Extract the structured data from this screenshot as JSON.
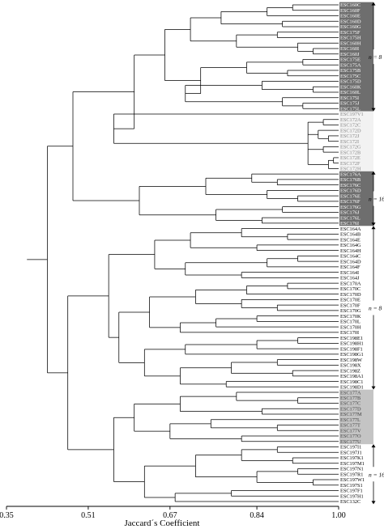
{
  "chart_data": {
    "type": "dendrogram",
    "xlabel": "Jaccard´s Coefficient",
    "xlim": [
      0.35,
      1.0
    ],
    "xticks": [
      "0.35",
      "0.51",
      "0.67",
      "0.84",
      "1.00"
    ],
    "leaves": [
      "ESC160C",
      "ESC160F",
      "ESC160E",
      "ESC160D",
      "ESC160G",
      "ESC175F",
      "ESC175H",
      "ESC160H",
      "ESC160I",
      "ESC160J",
      "ESC175E",
      "ESC175A",
      "ESC175B",
      "ESC175C",
      "ESC175D",
      "ESC160K",
      "ESC160L",
      "ESC175I",
      "ESC175J",
      "ESC175L",
      "ESC197V1",
      "ESC172A",
      "ESC172C",
      "ESC172D",
      "ESC172J",
      "ESC172I",
      "ESC172G",
      "ESC172B",
      "ESC172E",
      "ESC172F",
      "ESC172H",
      "ESC176A",
      "ESC176B",
      "ESC176C",
      "ESC176D",
      "ESC176E",
      "ESC176F",
      "ESC176G",
      "ESC176J",
      "ESC176L",
      "ESC176I",
      "ESC164A",
      "ESC164B",
      "ESC164E",
      "ESC164G",
      "ESC164H",
      "ESC164C",
      "ESC164D",
      "ESC164F",
      "ESC164I",
      "ESC164J",
      "ESC170A",
      "ESC170C",
      "ESC170D",
      "ESC170E",
      "ESC170F",
      "ESC170G",
      "ESC170K",
      "ESC170L",
      "ESC170H",
      "ESC170I",
      "ESC198E1",
      "ESC198H1",
      "ESC198F1",
      "ESC198G1",
      "ESC198W",
      "ESC198X",
      "ESC198Z",
      "ESC198A1",
      "ESC198C1",
      "ESC198D1",
      "ESC177A",
      "ESC177B",
      "ESC177C",
      "ESC177D",
      "ESC177M",
      "ESC177L",
      "ESC177T",
      "ESC177V",
      "ESC177O",
      "ESC177U",
      "ESC197I1",
      "ESC197J1",
      "ESC197K1",
      "ESC197M1",
      "ESC197N1",
      "ESC197R1",
      "ESC197W1",
      "ESC197S1",
      "ESC197F1",
      "ESC197H1",
      "ESC132C"
    ],
    "groups": [
      {
        "label": "n = 8",
        "first": 0,
        "last": 19,
        "shade": "#6e6e6e",
        "text_color": "#ffffff"
      },
      {
        "label": "",
        "first": 20,
        "last": 30,
        "shade": "#f2f2f2",
        "text_color": "#888888"
      },
      {
        "label": "n = 16",
        "first": 31,
        "last": 40,
        "shade": "#6e6e6e",
        "text_color": "#ffffff"
      },
      {
        "label": "n = 8",
        "first": 41,
        "last": 70,
        "shade": "#ffffff",
        "text_color": "#000000"
      },
      {
        "label": "",
        "first": 71,
        "last": 80,
        "shade": "#c4c4c4",
        "text_color": "#444444"
      },
      {
        "label": "n = 16",
        "first": 81,
        "last": 91,
        "shade": "#ffffff",
        "text_color": "#000000"
      }
    ],
    "tree": [
      0.39,
      [
        0.43,
        [
          0.48,
          [
            0.6,
            [
              0.66,
              [
                0.71,
                [
                  0.77,
                  [
                    0.86,
                    [
                      0.91,
                      0,
                      1
                    ],
                    2
                  ],
                  [
                    0.89,
                    3,
                    4
                  ]
                ],
                [
                  0.8,
                  [
                    0.88,
                    5,
                    6
                  ],
                  [
                    0.92,
                    7,
                    [
                      0.95,
                      8,
                      9
                    ]
                  ]
                ]
              ],
              [
                0.73,
                [
                  0.82,
                  [
                    0.93,
                    10,
                    11
                  ],
                  [
                    0.9,
                    12,
                    13
                  ]
                ],
                [
                  0.7,
                  [
                    0.85,
                    14,
                    [
                      0.95,
                      15,
                      16
                    ]
                  ],
                  [
                    0.89,
                    17,
                    [
                      0.93,
                      18,
                      19
                    ]
                  ]
                ]
              ]
            ],
            [
              0.56,
              20,
              [
                0.94,
                [
                  0.97,
                  21,
                  22
                ],
                [
                  0.96,
                  23,
                  [
                    0.98,
                    24,
                    25
                  ]
                ],
                [
                  0.97,
                  26,
                  27
                ],
                [
                  0.98,
                  [
                    0.99,
                    28,
                    29
                  ],
                  30
                ]
              ]
            ]
          ],
          [
            0.61,
            [
              0.74,
              [
                0.83,
                31,
                [
                  0.88,
                  32,
                  33
                ]
              ],
              [
                0.86,
                34,
                [
                  0.92,
                  35,
                  36
                ]
              ]
            ],
            [
              0.76,
              [
                0.89,
                37,
                38
              ],
              [
                0.85,
                39,
                40
              ]
            ]
          ]
        ],
        [
          0.47,
          [
            0.55,
            [
              0.64,
              [
                0.71,
                [
                  0.81,
                  41,
                  [
                    0.9,
                    42,
                    43
                  ]
                ],
                [
                  0.84,
                  44,
                  45
                ]
              ],
              [
                0.7,
                [
                  0.86,
                  [
                    0.92,
                    46,
                    47
                  ],
                  48
                ],
                [
                  0.81,
                  49,
                  50
                ]
              ]
            ],
            [
              0.57,
              [
                0.63,
                [
                  0.72,
                  [
                    0.82,
                    [
                      0.9,
                      51,
                      52
                    ],
                    53
                  ],
                  [
                    0.81,
                    54,
                    [
                      0.88,
                      55,
                      56
                    ]
                  ]
                ],
                [
                  0.69,
                  [
                    0.76,
                    [
                      0.84,
                      57,
                      58
                    ],
                    59
                  ],
                  60
                ]
              ],
              [
                0.62,
                [
                  0.7,
                  [
                    0.84,
                    [
                      0.92,
                      61,
                      62
                    ],
                    63
                  ],
                  64
                ],
                [
                  0.69,
                  [
                    0.79,
                    [
                      0.88,
                      65,
                      66
                    ],
                    [
                      0.91,
                      67,
                      68
                    ]
                  ],
                  [
                    0.78,
                    69,
                    70
                  ]
                ]
              ]
            ]
          ],
          [
            0.56,
            [
              0.6,
              [
                0.69,
                [
                  0.8,
                  71,
                  [
                    0.92,
                    72,
                    73
                  ]
                ],
                [
                  0.85,
                  74,
                  75
                ]
              ],
              [
                0.67,
                [
                  0.75,
                  76,
                  [
                    0.88,
                    77,
                    78
                  ]
                ],
                [
                  0.81,
                  79,
                  80
                ]
              ]
            ],
            [
              0.62,
              [
                0.72,
                [
                  0.81,
                  [
                    0.88,
                    81,
                    82
                  ],
                  [
                    0.91,
                    83,
                    84
                  ]
                ],
                [
                  0.84,
                  [
                    0.92,
                    85,
                    86
                  ],
                  [
                    0.95,
                    87,
                    88
                  ]
                ]
              ],
              [
                0.68,
                [
                  0.79,
                  89,
                  90
                ],
                91
              ]
            ]
          ]
        ]
      ]
    ]
  }
}
